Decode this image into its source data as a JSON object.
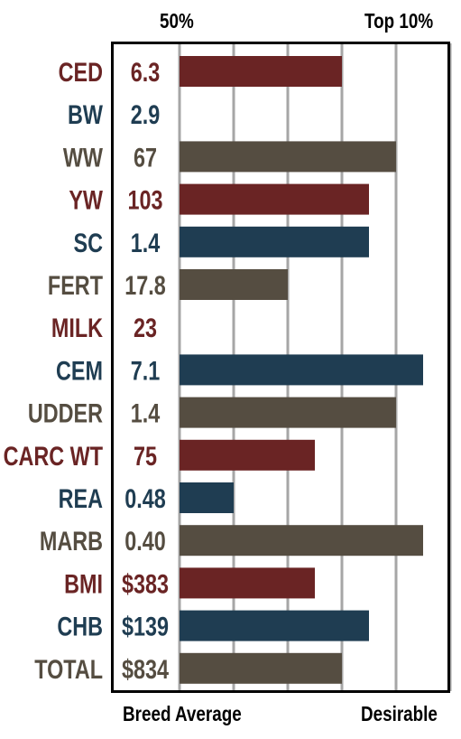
{
  "header": {
    "left_label": "50%",
    "right_label": "Top 10%"
  },
  "footer": {
    "left_label": "Breed Average",
    "right_label": "Desirable"
  },
  "colors": {
    "red": "#6a2424",
    "navy": "#1f3d52",
    "brown": "#554d41",
    "grid": "#a6a6a6",
    "frame": "#000000"
  },
  "chart_data": {
    "type": "bar",
    "orientation": "horizontal",
    "xlim": [
      0,
      5
    ],
    "grid": true,
    "categories": [
      "CED",
      "BW",
      "WW",
      "YW",
      "SC",
      "FERT",
      "MILK",
      "CEM",
      "UDDER",
      "CARC WT",
      "REA",
      "MARB",
      "BMI",
      "CHB",
      "TOTAL"
    ],
    "value_labels": [
      "6.3",
      "2.9",
      "67",
      "103",
      "1.4",
      "17.8",
      "23",
      "7.1",
      "1.4",
      "75",
      "0.48",
      "0.40",
      "$383",
      "$139",
      "$834"
    ],
    "values": [
      3,
      0,
      4,
      3.5,
      3.5,
      2,
      0,
      4.5,
      4,
      2.5,
      1,
      4.5,
      2.5,
      3.5,
      3
    ],
    "bar_colors": [
      "red",
      "navy",
      "brown",
      "red",
      "navy",
      "brown",
      "red",
      "navy",
      "brown",
      "red",
      "navy",
      "brown",
      "red",
      "navy",
      "brown"
    ]
  }
}
